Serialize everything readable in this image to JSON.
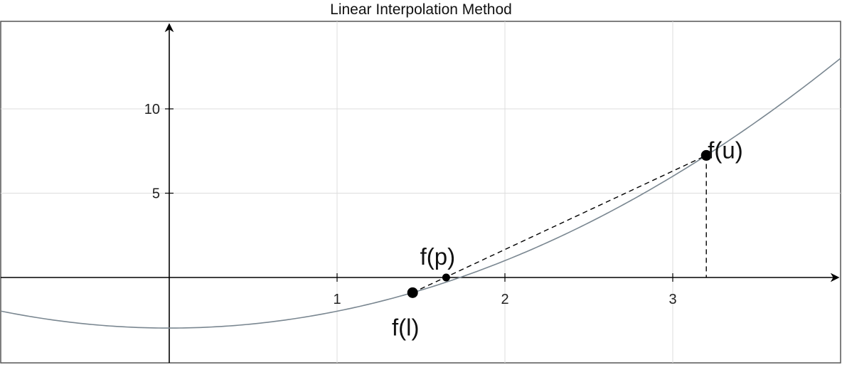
{
  "chart_data": {
    "type": "line",
    "title": "Linear Interpolation Method",
    "xlabel": "",
    "ylabel": "",
    "xlim": [
      -1.0,
      4.0
    ],
    "ylim": [
      -5.0,
      15.0
    ],
    "x_ticks": [
      1,
      2,
      3
    ],
    "y_ticks": [
      5,
      10
    ],
    "grid": true,
    "curve": {
      "function": "x^2 - 3",
      "x_range": [
        -1.0,
        4.0
      ],
      "color": "#7a8791"
    },
    "points": [
      {
        "label": "f(l)",
        "x": 1.45,
        "y": -0.9
      },
      {
        "label": "f(p)",
        "x": 1.65,
        "y": 0.0
      },
      {
        "label": "f(u)",
        "x": 3.2,
        "y": 7.24
      }
    ],
    "secant": {
      "from": "f(l)",
      "to": "f(u)",
      "style": "dashed"
    },
    "drop_line": {
      "at": "f(u)",
      "style": "dashed"
    }
  }
}
